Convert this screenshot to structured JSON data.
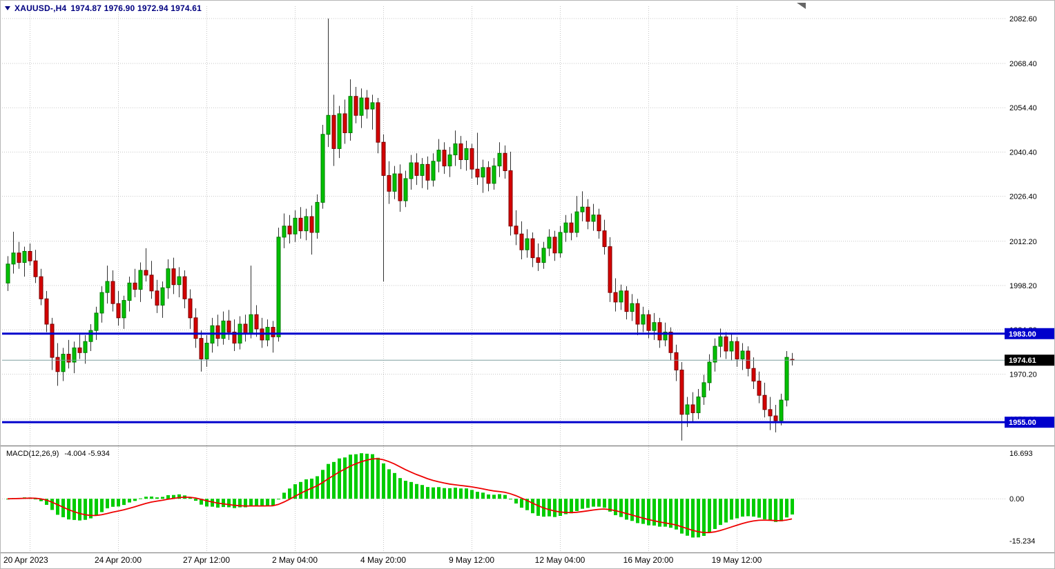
{
  "header": {
    "title": "XAUUSD-,H4",
    "ohlc": "1974.87 1976.90 1972.94 1974.61",
    "color": "#000080"
  },
  "price_axis": {
    "ticks": [
      {
        "v": 2082.6,
        "label": "2082.60"
      },
      {
        "v": 2068.4,
        "label": "2068.40"
      },
      {
        "v": 2054.4,
        "label": "2054.40"
      },
      {
        "v": 2040.4,
        "label": "2040.40"
      },
      {
        "v": 2026.4,
        "label": "2026.40"
      },
      {
        "v": 2012.2,
        "label": "2012.20"
      },
      {
        "v": 1998.2,
        "label": "1998.20"
      },
      {
        "v": 1984.2,
        "label": "1984.20"
      },
      {
        "v": 1970.2,
        "label": "1970.20"
      },
      {
        "v": 1956.0,
        "label": "1956.00"
      }
    ]
  },
  "time_axis": {
    "ticks": [
      {
        "bar": 4,
        "label": "20 Apr 2023"
      },
      {
        "bar": 20,
        "label": "24 Apr 20:00"
      },
      {
        "bar": 36,
        "label": "27 Apr 12:00"
      },
      {
        "bar": 52,
        "label": "2 May 04:00"
      },
      {
        "bar": 68,
        "label": "4 May 20:00"
      },
      {
        "bar": 84,
        "label": "9 May 12:00"
      },
      {
        "bar": 100,
        "label": "12 May 04:00"
      },
      {
        "bar": 116,
        "label": "16 May 20:00"
      },
      {
        "bar": 132,
        "label": "19 May 12:00"
      }
    ]
  },
  "levels": [
    {
      "value": 1983.0,
      "label": "1983.00",
      "color": "#0000cc"
    },
    {
      "value": 1955.0,
      "label": "1955.00",
      "color": "#0000cc"
    }
  ],
  "current_price": {
    "value": 1974.61,
    "label": "1974.61",
    "line_color": "#7f9f9f",
    "tag_color": "#000000"
  },
  "macd": {
    "name": "MACD(12,26,9)",
    "values_text": "-4.004 -5.934",
    "main_value": -4.004,
    "signal_value": -5.934,
    "fast": 12,
    "slow": 26,
    "signal": 9,
    "hist_color": "#00cc00",
    "signal_color": "#ee0000",
    "axis_ticks": [
      {
        "v": 16.693,
        "label": "16.693"
      },
      {
        "v": 0,
        "label": "0.00"
      },
      {
        "v": -15.234,
        "label": "-15.234"
      }
    ]
  },
  "chart_data": {
    "type": "candlestick",
    "symbol": "XAUUSD-",
    "timeframe": "H4",
    "title": "XAUUSD-,H4",
    "y_range": [
      1948.5,
      2086.5
    ],
    "up_color": "#00c000",
    "up_border": "#007a00",
    "down_color": "#d40000",
    "down_border": "#7a0000",
    "wick_color": "#303030",
    "grid_color": "#c6c6c6",
    "candles": [
      [
        1999,
        2007.5,
        1996.5,
        2005
      ],
      [
        2005,
        2015.2,
        2002,
        2008.5
      ],
      [
        2008.5,
        2012,
        2003.5,
        2005.5
      ],
      [
        2005.5,
        2010.5,
        2001,
        2009
      ],
      [
        2009,
        2011.5,
        2004.5,
        2006
      ],
      [
        2006,
        2009.5,
        1999,
        2001
      ],
      [
        2001,
        2003.5,
        1992,
        1994
      ],
      [
        1994,
        1996.5,
        1983.5,
        1986
      ],
      [
        1986,
        1988,
        1971.5,
        1975.5
      ],
      [
        1975.5,
        1980,
        1966.5,
        1971
      ],
      [
        1971,
        1978.5,
        1968,
        1976.5
      ],
      [
        1976.5,
        1981,
        1972,
        1974
      ],
      [
        1974,
        1980.5,
        1970.5,
        1978.5
      ],
      [
        1978.5,
        1983,
        1975,
        1977
      ],
      [
        1977,
        1982.5,
        1973.5,
        1980.5
      ],
      [
        1980.5,
        1986,
        1977.5,
        1984
      ],
      [
        1984,
        1991.5,
        1981,
        1989.5
      ],
      [
        1989.5,
        1998,
        1986.5,
        1996
      ],
      [
        1996,
        2004.5,
        1992.5,
        1999.5
      ],
      [
        1999.5,
        2003,
        1990,
        1992.5
      ],
      [
        1992.5,
        1996.5,
        1985.5,
        1988
      ],
      [
        1988,
        1995,
        1984.5,
        1993.5
      ],
      [
        1993.5,
        2001,
        1990,
        1999
      ],
      [
        1999,
        2003.5,
        1994.5,
        1997
      ],
      [
        1997,
        2005.5,
        1993,
        2003
      ],
      [
        2003,
        2010,
        1999.5,
        2001.5
      ],
      [
        2001.5,
        2006,
        1994,
        1996.5
      ],
      [
        1996.5,
        2000,
        1989.5,
        1992
      ],
      [
        1992,
        1999.5,
        1988,
        1997.5
      ],
      [
        1997.5,
        2006.5,
        1994,
        2003.5
      ],
      [
        2003.5,
        2007,
        1995.5,
        1998.5
      ],
      [
        1998.5,
        2004,
        1994.5,
        2001
      ],
      [
        2001,
        2003,
        1991,
        1994
      ],
      [
        1994,
        1997,
        1984.5,
        1988
      ],
      [
        1988,
        1991,
        1978.5,
        1981.5
      ],
      [
        1981.5,
        1984,
        1971,
        1975
      ],
      [
        1975,
        1982.5,
        1972.5,
        1980
      ],
      [
        1980,
        1988,
        1977,
        1985.5
      ],
      [
        1985.5,
        1989,
        1979,
        1981.5
      ],
      [
        1981.5,
        1990,
        1979.5,
        1987
      ],
      [
        1987,
        1990.5,
        1981,
        1983.5
      ],
      [
        1983.5,
        1987.5,
        1977.5,
        1980
      ],
      [
        1980,
        1988.5,
        1978,
        1986
      ],
      [
        1986,
        1989,
        1980.5,
        1983
      ],
      [
        1983,
        2004.5,
        1981.5,
        1989
      ],
      [
        1989,
        1992,
        1982,
        1984.5
      ],
      [
        1984.5,
        1988,
        1978.5,
        1981
      ],
      [
        1981,
        1987.5,
        1979,
        1985
      ],
      [
        1985,
        1987,
        1977,
        1982
      ],
      [
        1982,
        2016.5,
        1980.5,
        2013.5
      ],
      [
        2013.5,
        2021,
        2010,
        2017
      ],
      [
        2017,
        2020.5,
        2011.5,
        2014.5
      ],
      [
        2014.5,
        2022,
        2012,
        2019.5
      ],
      [
        2019.5,
        2023,
        2013,
        2015.5
      ],
      [
        2015.5,
        2022.5,
        2012.5,
        2020
      ],
      [
        2020,
        2023.5,
        2008,
        2015
      ],
      [
        2015,
        2027,
        2013,
        2024.5
      ],
      [
        2024.5,
        2049,
        2022.5,
        2046
      ],
      [
        2046,
        2082.6,
        2042,
        2052
      ],
      [
        2052,
        2058.5,
        2036,
        2041.5
      ],
      [
        2041.5,
        2055,
        2038.5,
        2052.5
      ],
      [
        2052.5,
        2057,
        2043,
        2046.5
      ],
      [
        2046.5,
        2063.4,
        2044,
        2058
      ],
      [
        2058,
        2061,
        2049.5,
        2052
      ],
      [
        2052,
        2060.5,
        2048,
        2057.5
      ],
      [
        2057.5,
        2060,
        2051,
        2054
      ],
      [
        2054,
        2058.5,
        2047.5,
        2056
      ],
      [
        2056,
        2057.5,
        2040,
        2043.5
      ],
      [
        2043.5,
        2046,
        1999.5,
        2033
      ],
      [
        2033,
        2037.5,
        2024,
        2028
      ],
      [
        2028,
        2036,
        2025.5,
        2033.5
      ],
      [
        2033.5,
        2036.5,
        2021.5,
        2025
      ],
      [
        2025,
        2034.5,
        2023,
        2032
      ],
      [
        2032,
        2039.5,
        2028.5,
        2037
      ],
      [
        2037,
        2040,
        2030,
        2033
      ],
      [
        2033,
        2038.5,
        2029,
        2036.5
      ],
      [
        2036.5,
        2039,
        2028.5,
        2031.5
      ],
      [
        2031.5,
        2040,
        2029.5,
        2037.5
      ],
      [
        2037.5,
        2044.5,
        2034,
        2041
      ],
      [
        2041,
        2043.5,
        2033.5,
        2036
      ],
      [
        2036,
        2042,
        2032.5,
        2039.5
      ],
      [
        2039.5,
        2047.2,
        2036,
        2043
      ],
      [
        2043,
        2045.5,
        2035,
        2038
      ],
      [
        2038,
        2044,
        2034.5,
        2041.5
      ],
      [
        2041.5,
        2043,
        2032,
        2035
      ],
      [
        2035,
        2046.5,
        2030,
        2032.5
      ],
      [
        2032.5,
        2038,
        2027.5,
        2035.5
      ],
      [
        2035.5,
        2037.5,
        2028,
        2030.5
      ],
      [
        2030.5,
        2038.5,
        2028.5,
        2036
      ],
      [
        2036,
        2043.5,
        2032.5,
        2040
      ],
      [
        2040,
        2042.5,
        2032,
        2034.5
      ],
      [
        2034.5,
        2040.5,
        2014,
        2017
      ],
      [
        2017,
        2022,
        2011,
        2014.5
      ],
      [
        2014.5,
        2018.5,
        2006.5,
        2009.5
      ],
      [
        2009.5,
        2016,
        2007,
        2013
      ],
      [
        2013,
        2015,
        2004,
        2007
      ],
      [
        2007,
        2011.5,
        2002.8,
        2005.5
      ],
      [
        2005.5,
        2012,
        2003.5,
        2010
      ],
      [
        2010,
        2016,
        2007.5,
        2013.5
      ],
      [
        2013.5,
        2015.5,
        2006,
        2008.5
      ],
      [
        2008.5,
        2017,
        2007,
        2015
      ],
      [
        2015,
        2020.5,
        2012,
        2018
      ],
      [
        2018,
        2021,
        2012.5,
        2015
      ],
      [
        2015,
        2026.5,
        2013.5,
        2021.5
      ],
      [
        2021.5,
        2028,
        2018.5,
        2023
      ],
      [
        2023,
        2025.5,
        2016,
        2018.5
      ],
      [
        2018.5,
        2024,
        2015.5,
        2020.5
      ],
      [
        2020.5,
        2022.5,
        2013,
        2015.5
      ],
      [
        2015.5,
        2019,
        2008,
        2010.5
      ],
      [
        2010.5,
        2013.5,
        1993,
        1996
      ],
      [
        1996,
        2000.5,
        1990,
        1993
      ],
      [
        1993,
        1998.5,
        1990.5,
        1996.5
      ],
      [
        1996.5,
        1998,
        1987.5,
        1990
      ],
      [
        1990,
        1995.5,
        1987,
        1992.5
      ],
      [
        1992.5,
        1994,
        1982.5,
        1986
      ],
      [
        1986,
        1991.5,
        1983.5,
        1989
      ],
      [
        1989,
        1990.5,
        1981.5,
        1984
      ],
      [
        1984,
        1989.5,
        1981,
        1986.5
      ],
      [
        1986.5,
        1988,
        1978.5,
        1981
      ],
      [
        1981,
        1986.5,
        1979,
        1983.5
      ],
      [
        1983.5,
        1985,
        1974.5,
        1977
      ],
      [
        1977,
        1979.5,
        1968,
        1971.5
      ],
      [
        1971.5,
        1974,
        1949.2,
        1957.5
      ],
      [
        1957.5,
        1963,
        1953.5,
        1960.5
      ],
      [
        1960.5,
        1964.5,
        1955,
        1958
      ],
      [
        1958,
        1965.5,
        1956,
        1963
      ],
      [
        1963,
        1970,
        1960.5,
        1967.5
      ],
      [
        1967.5,
        1976.5,
        1965,
        1974
      ],
      [
        1974,
        1981.5,
        1971,
        1979
      ],
      [
        1979,
        1984.6,
        1975.5,
        1982
      ],
      [
        1982,
        1983.5,
        1975,
        1977.5
      ],
      [
        1977.5,
        1983,
        1974.5,
        1980.5
      ],
      [
        1980.5,
        1982,
        1972.5,
        1975
      ],
      [
        1975,
        1980,
        1971.5,
        1977.5
      ],
      [
        1977.5,
        1979,
        1969.5,
        1972
      ],
      [
        1972,
        1975.5,
        1965.5,
        1968
      ],
      [
        1968,
        1971,
        1961,
        1963.5
      ],
      [
        1963.5,
        1967.5,
        1956.5,
        1959
      ],
      [
        1959,
        1963,
        1952.5,
        1957
      ],
      [
        1957,
        1960.5,
        1951.8,
        1955.5
      ],
      [
        1955.5,
        1964,
        1954,
        1962
      ],
      [
        1962,
        1977.5,
        1960,
        1975.5
      ],
      [
        1974.87,
        1976.9,
        1972.94,
        1974.61
      ]
    ]
  }
}
